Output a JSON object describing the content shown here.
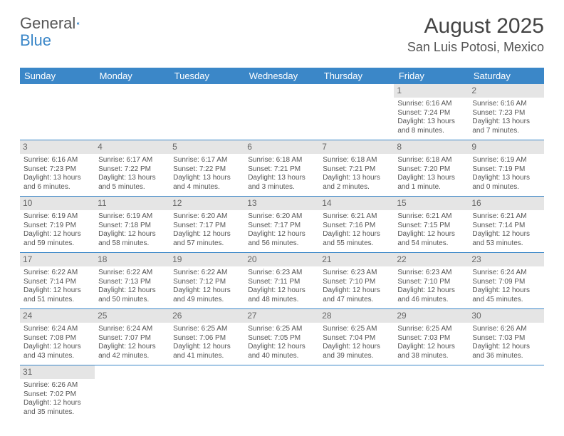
{
  "logo": {
    "text1": "General",
    "text2": "Blue",
    "accent": "#3b87c8"
  },
  "header": {
    "title": "August 2025",
    "location": "San Luis Potosi, Mexico"
  },
  "colors": {
    "header_bg": "#3b87c8",
    "header_fg": "#ffffff",
    "daynum_bg": "#e5e5e5",
    "border": "#3b87c8"
  },
  "dayNames": [
    "Sunday",
    "Monday",
    "Tuesday",
    "Wednesday",
    "Thursday",
    "Friday",
    "Saturday"
  ],
  "weeks": [
    [
      null,
      null,
      null,
      null,
      null,
      {
        "n": "1",
        "sr": "Sunrise: 6:16 AM",
        "ss": "Sunset: 7:24 PM",
        "d1": "Daylight: 13 hours",
        "d2": "and 8 minutes."
      },
      {
        "n": "2",
        "sr": "Sunrise: 6:16 AM",
        "ss": "Sunset: 7:23 PM",
        "d1": "Daylight: 13 hours",
        "d2": "and 7 minutes."
      }
    ],
    [
      {
        "n": "3",
        "sr": "Sunrise: 6:16 AM",
        "ss": "Sunset: 7:23 PM",
        "d1": "Daylight: 13 hours",
        "d2": "and 6 minutes."
      },
      {
        "n": "4",
        "sr": "Sunrise: 6:17 AM",
        "ss": "Sunset: 7:22 PM",
        "d1": "Daylight: 13 hours",
        "d2": "and 5 minutes."
      },
      {
        "n": "5",
        "sr": "Sunrise: 6:17 AM",
        "ss": "Sunset: 7:22 PM",
        "d1": "Daylight: 13 hours",
        "d2": "and 4 minutes."
      },
      {
        "n": "6",
        "sr": "Sunrise: 6:18 AM",
        "ss": "Sunset: 7:21 PM",
        "d1": "Daylight: 13 hours",
        "d2": "and 3 minutes."
      },
      {
        "n": "7",
        "sr": "Sunrise: 6:18 AM",
        "ss": "Sunset: 7:21 PM",
        "d1": "Daylight: 13 hours",
        "d2": "and 2 minutes."
      },
      {
        "n": "8",
        "sr": "Sunrise: 6:18 AM",
        "ss": "Sunset: 7:20 PM",
        "d1": "Daylight: 13 hours",
        "d2": "and 1 minute."
      },
      {
        "n": "9",
        "sr": "Sunrise: 6:19 AM",
        "ss": "Sunset: 7:19 PM",
        "d1": "Daylight: 13 hours",
        "d2": "and 0 minutes."
      }
    ],
    [
      {
        "n": "10",
        "sr": "Sunrise: 6:19 AM",
        "ss": "Sunset: 7:19 PM",
        "d1": "Daylight: 12 hours",
        "d2": "and 59 minutes."
      },
      {
        "n": "11",
        "sr": "Sunrise: 6:19 AM",
        "ss": "Sunset: 7:18 PM",
        "d1": "Daylight: 12 hours",
        "d2": "and 58 minutes."
      },
      {
        "n": "12",
        "sr": "Sunrise: 6:20 AM",
        "ss": "Sunset: 7:17 PM",
        "d1": "Daylight: 12 hours",
        "d2": "and 57 minutes."
      },
      {
        "n": "13",
        "sr": "Sunrise: 6:20 AM",
        "ss": "Sunset: 7:17 PM",
        "d1": "Daylight: 12 hours",
        "d2": "and 56 minutes."
      },
      {
        "n": "14",
        "sr": "Sunrise: 6:21 AM",
        "ss": "Sunset: 7:16 PM",
        "d1": "Daylight: 12 hours",
        "d2": "and 55 minutes."
      },
      {
        "n": "15",
        "sr": "Sunrise: 6:21 AM",
        "ss": "Sunset: 7:15 PM",
        "d1": "Daylight: 12 hours",
        "d2": "and 54 minutes."
      },
      {
        "n": "16",
        "sr": "Sunrise: 6:21 AM",
        "ss": "Sunset: 7:14 PM",
        "d1": "Daylight: 12 hours",
        "d2": "and 53 minutes."
      }
    ],
    [
      {
        "n": "17",
        "sr": "Sunrise: 6:22 AM",
        "ss": "Sunset: 7:14 PM",
        "d1": "Daylight: 12 hours",
        "d2": "and 51 minutes."
      },
      {
        "n": "18",
        "sr": "Sunrise: 6:22 AM",
        "ss": "Sunset: 7:13 PM",
        "d1": "Daylight: 12 hours",
        "d2": "and 50 minutes."
      },
      {
        "n": "19",
        "sr": "Sunrise: 6:22 AM",
        "ss": "Sunset: 7:12 PM",
        "d1": "Daylight: 12 hours",
        "d2": "and 49 minutes."
      },
      {
        "n": "20",
        "sr": "Sunrise: 6:23 AM",
        "ss": "Sunset: 7:11 PM",
        "d1": "Daylight: 12 hours",
        "d2": "and 48 minutes."
      },
      {
        "n": "21",
        "sr": "Sunrise: 6:23 AM",
        "ss": "Sunset: 7:10 PM",
        "d1": "Daylight: 12 hours",
        "d2": "and 47 minutes."
      },
      {
        "n": "22",
        "sr": "Sunrise: 6:23 AM",
        "ss": "Sunset: 7:10 PM",
        "d1": "Daylight: 12 hours",
        "d2": "and 46 minutes."
      },
      {
        "n": "23",
        "sr": "Sunrise: 6:24 AM",
        "ss": "Sunset: 7:09 PM",
        "d1": "Daylight: 12 hours",
        "d2": "and 45 minutes."
      }
    ],
    [
      {
        "n": "24",
        "sr": "Sunrise: 6:24 AM",
        "ss": "Sunset: 7:08 PM",
        "d1": "Daylight: 12 hours",
        "d2": "and 43 minutes."
      },
      {
        "n": "25",
        "sr": "Sunrise: 6:24 AM",
        "ss": "Sunset: 7:07 PM",
        "d1": "Daylight: 12 hours",
        "d2": "and 42 minutes."
      },
      {
        "n": "26",
        "sr": "Sunrise: 6:25 AM",
        "ss": "Sunset: 7:06 PM",
        "d1": "Daylight: 12 hours",
        "d2": "and 41 minutes."
      },
      {
        "n": "27",
        "sr": "Sunrise: 6:25 AM",
        "ss": "Sunset: 7:05 PM",
        "d1": "Daylight: 12 hours",
        "d2": "and 40 minutes."
      },
      {
        "n": "28",
        "sr": "Sunrise: 6:25 AM",
        "ss": "Sunset: 7:04 PM",
        "d1": "Daylight: 12 hours",
        "d2": "and 39 minutes."
      },
      {
        "n": "29",
        "sr": "Sunrise: 6:25 AM",
        "ss": "Sunset: 7:03 PM",
        "d1": "Daylight: 12 hours",
        "d2": "and 38 minutes."
      },
      {
        "n": "30",
        "sr": "Sunrise: 6:26 AM",
        "ss": "Sunset: 7:03 PM",
        "d1": "Daylight: 12 hours",
        "d2": "and 36 minutes."
      }
    ],
    [
      {
        "n": "31",
        "sr": "Sunrise: 6:26 AM",
        "ss": "Sunset: 7:02 PM",
        "d1": "Daylight: 12 hours",
        "d2": "and 35 minutes."
      },
      null,
      null,
      null,
      null,
      null,
      null
    ]
  ]
}
